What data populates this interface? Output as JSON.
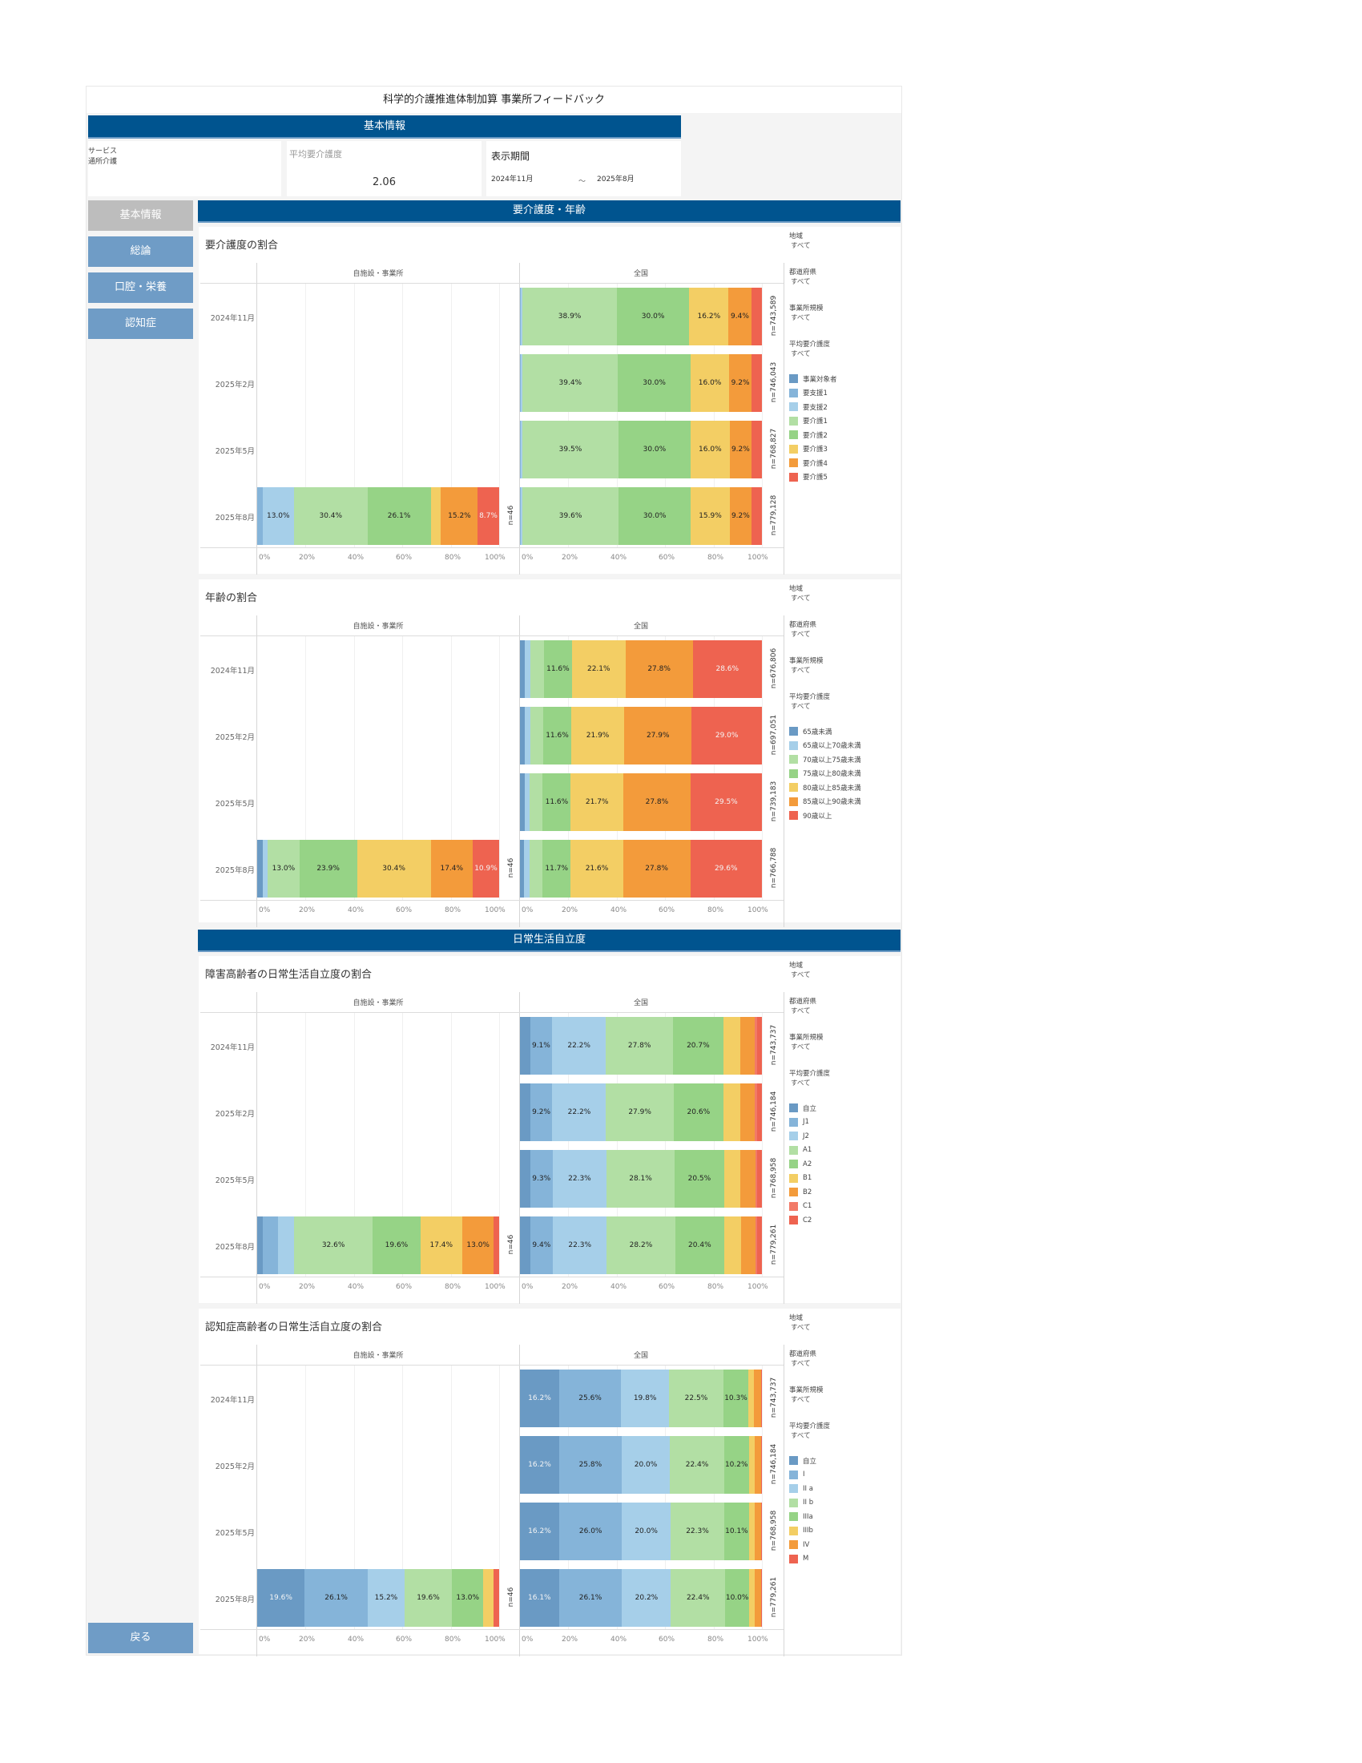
{
  "page": {
    "title": "科学的介護推進体制加算 事業所フィードバック"
  },
  "basic_info": {
    "banner": "基本情報",
    "service_label": "サービス",
    "service_value": "通所介護",
    "avg_care_label": "平均要介護度",
    "avg_care_value": "2.06",
    "period_label": "表示期間",
    "period_start": "2024年11月",
    "period_sep": "～",
    "period_end": "2025年8月"
  },
  "nav": {
    "items": [
      {
        "label": "基本情報",
        "active": false
      },
      {
        "label": "総論",
        "active": true
      },
      {
        "label": "口腔・栄養",
        "active": true
      },
      {
        "label": "認知症",
        "active": true
      }
    ],
    "back": "戻る"
  },
  "sections": {
    "care_age": "要介護度・年齢",
    "daily_life": "日常生活自立度"
  },
  "colors": {
    "banner": "#00548f",
    "palette": [
      "#6a9ac4",
      "#85b4d9",
      "#a6cfe9",
      "#b2dfa4",
      "#96d386",
      "#f3ce64",
      "#f39b3b",
      "#ee6350"
    ]
  },
  "common": {
    "facility_header": "自施設・事業所",
    "national_header": "全国",
    "rows": [
      "2024年11月",
      "2025年2月",
      "2025年5月",
      "2025年8月"
    ],
    "ticks": [
      "0%",
      "20%",
      "40%",
      "60%",
      "80%",
      "100%"
    ],
    "filters": [
      {
        "label": "地域",
        "value": "すべて"
      },
      {
        "label": "都道府県",
        "value": "すべて"
      },
      {
        "label": "事業所規模",
        "value": "すべて"
      },
      {
        "label": "平均要介護度",
        "value": "すべて"
      }
    ]
  },
  "chart_data": [
    {
      "type": "bar",
      "stacked": "100%",
      "orientation": "horizontal",
      "title": "要介護度の割合",
      "categories": [
        "2024年11月",
        "2025年2月",
        "2025年5月",
        "2025年8月"
      ],
      "legend": [
        "事業対象者",
        "要支援1",
        "要支援2",
        "要介護1",
        "要介護2",
        "要介護3",
        "要介護4",
        "要介護5"
      ],
      "color_index": [
        0,
        1,
        2,
        3,
        4,
        5,
        6,
        7
      ],
      "xlim": [
        0,
        100
      ],
      "facility": {
        "n": [
          "",
          "",
          "",
          "n=46"
        ],
        "values": [
          null,
          null,
          null,
          [
            0,
            2.2,
            13.0,
            30.4,
            26.1,
            4.3,
            15.2,
            8.7
          ]
        ],
        "labels": [
          null,
          null,
          null,
          [
            "",
            "",
            "13.0%",
            "30.4%",
            "26.1%",
            "",
            "15.2%",
            "8.7%"
          ]
        ]
      },
      "national": {
        "n": [
          "n=743,589",
          "n=746,043",
          "n=768,827",
          "n=779,128"
        ],
        "values": [
          [
            0,
            0.4,
            0.7,
            38.9,
            30.0,
            16.2,
            9.4,
            4.4
          ],
          [
            0,
            0.4,
            0.7,
            39.4,
            30.0,
            16.0,
            9.2,
            4.3
          ],
          [
            0,
            0.4,
            0.7,
            39.5,
            30.0,
            16.0,
            9.2,
            4.2
          ],
          [
            0,
            0.4,
            0.7,
            39.6,
            30.0,
            15.9,
            9.2,
            4.2
          ]
        ],
        "labels": [
          [
            "",
            "",
            "",
            "38.9%",
            "30.0%",
            "16.2%",
            "9.4%",
            ""
          ],
          [
            "",
            "",
            "",
            "39.4%",
            "30.0%",
            "16.0%",
            "9.2%",
            ""
          ],
          [
            "",
            "",
            "",
            "39.5%",
            "30.0%",
            "16.0%",
            "9.2%",
            ""
          ],
          [
            "",
            "",
            "",
            "39.6%",
            "30.0%",
            "15.9%",
            "9.2%",
            ""
          ]
        ]
      }
    },
    {
      "type": "bar",
      "stacked": "100%",
      "orientation": "horizontal",
      "title": "年齢の割合",
      "categories": [
        "2024年11月",
        "2025年2月",
        "2025年5月",
        "2025年8月"
      ],
      "legend": [
        "65歳未満",
        "65歳以上70歳未満",
        "70歳以上75歳未満",
        "75歳以上80歳未満",
        "80歳以上85歳未満",
        "85歳以上90歳未満",
        "90歳以上"
      ],
      "color_index": [
        0,
        2,
        3,
        4,
        5,
        6,
        7
      ],
      "xlim": [
        0,
        100
      ],
      "facility": {
        "n": [
          "",
          "",
          "",
          "n=46"
        ],
        "values": [
          null,
          null,
          null,
          [
            2.2,
            2.2,
            13.0,
            23.9,
            30.4,
            17.4,
            10.9
          ]
        ],
        "labels": [
          null,
          null,
          null,
          [
            "",
            "",
            "13.0%",
            "23.9%",
            "30.4%",
            "17.4%",
            "10.9%"
          ]
        ]
      },
      "national": {
        "n": [
          "n=676,806",
          "n=697,051",
          "n=739,183",
          "n=766,788"
        ],
        "values": [
          [
            2.0,
            2.3,
            5.6,
            11.6,
            22.1,
            27.8,
            28.6
          ],
          [
            2.0,
            2.3,
            5.3,
            11.6,
            21.9,
            27.9,
            29.0
          ],
          [
            1.9,
            2.2,
            5.3,
            11.6,
            21.7,
            27.8,
            29.5
          ],
          [
            1.8,
            2.2,
            5.3,
            11.7,
            21.6,
            27.8,
            29.6
          ]
        ],
        "labels": [
          [
            "",
            "",
            "",
            "11.6%",
            "22.1%",
            "27.8%",
            "28.6%"
          ],
          [
            "",
            "",
            "",
            "11.6%",
            "21.9%",
            "27.9%",
            "29.0%"
          ],
          [
            "",
            "",
            "",
            "11.6%",
            "21.7%",
            "27.8%",
            "29.5%"
          ],
          [
            "",
            "",
            "",
            "11.7%",
            "21.6%",
            "27.8%",
            "29.6%"
          ]
        ]
      }
    },
    {
      "type": "bar",
      "stacked": "100%",
      "orientation": "horizontal",
      "title": "障害高齢者の日常生活自立度の割合",
      "categories": [
        "2024年11月",
        "2025年2月",
        "2025年5月",
        "2025年8月"
      ],
      "legend": [
        "自立",
        "J1",
        "J2",
        "A1",
        "A2",
        "B1",
        "B2",
        "C1",
        "C2"
      ],
      "color_index": [
        0,
        1,
        2,
        3,
        4,
        5,
        6,
        8,
        7
      ],
      "xlim": [
        0,
        100
      ],
      "facility": {
        "n": [
          "",
          "",
          "",
          "n=46"
        ],
        "values": [
          null,
          null,
          null,
          [
            2.2,
            6.5,
            6.5,
            32.6,
            19.6,
            17.4,
            13.0,
            0,
            2.2
          ]
        ],
        "labels": [
          null,
          null,
          null,
          [
            "",
            "",
            "",
            "32.6%",
            "19.6%",
            "17.4%",
            "13.0%",
            "",
            ""
          ]
        ]
      },
      "national": {
        "n": [
          "n=743,737",
          "n=746,184",
          "n=768,958",
          "n=779,261"
        ],
        "values": [
          [
            4.2,
            9.1,
            22.2,
            27.8,
            20.7,
            7.0,
            6.2,
            0.8,
            2.0
          ],
          [
            4.2,
            9.2,
            22.2,
            27.9,
            20.6,
            6.9,
            6.2,
            0.8,
            2.0
          ],
          [
            4.2,
            9.3,
            22.3,
            28.1,
            20.5,
            6.8,
            6.0,
            0.8,
            2.0
          ],
          [
            4.2,
            9.4,
            22.3,
            28.2,
            20.4,
            6.8,
            6.0,
            0.7,
            2.0
          ]
        ],
        "labels": [
          [
            "",
            "9.1%",
            "22.2%",
            "27.8%",
            "20.7%",
            "",
            "",
            "",
            ""
          ],
          [
            "",
            "9.2%",
            "22.2%",
            "27.9%",
            "20.6%",
            "",
            "",
            "",
            ""
          ],
          [
            "",
            "9.3%",
            "22.3%",
            "28.1%",
            "20.5%",
            "",
            "",
            "",
            ""
          ],
          [
            "",
            "9.4%",
            "22.3%",
            "28.2%",
            "20.4%",
            "",
            "",
            "",
            ""
          ]
        ]
      }
    },
    {
      "type": "bar",
      "stacked": "100%",
      "orientation": "horizontal",
      "title": "認知症高齢者の日常生活自立度の割合",
      "categories": [
        "2024年11月",
        "2025年2月",
        "2025年5月",
        "2025年8月"
      ],
      "legend": [
        "自立",
        "I",
        "II a",
        "II b",
        "IIIa",
        "IIIb",
        "IV",
        "M"
      ],
      "color_index": [
        0,
        1,
        2,
        3,
        4,
        5,
        6,
        7
      ],
      "xlim": [
        0,
        100
      ],
      "facility": {
        "n": [
          "",
          "",
          "",
          "n=46"
        ],
        "values": [
          null,
          null,
          null,
          [
            19.6,
            26.1,
            15.2,
            19.6,
            13.0,
            4.3,
            0,
            2.2
          ]
        ],
        "labels": [
          null,
          null,
          null,
          [
            "19.6%",
            "26.1%",
            "15.2%",
            "19.6%",
            "13.0%",
            "",
            "",
            ""
          ]
        ]
      },
      "national": {
        "n": [
          "n=743,737",
          "n=746,184",
          "n=768,958",
          "n=779,261"
        ],
        "values": [
          [
            16.2,
            25.6,
            19.8,
            22.5,
            10.3,
            2.3,
            3.1,
            0.2
          ],
          [
            16.2,
            25.8,
            20.0,
            22.4,
            10.2,
            2.3,
            2.9,
            0.2
          ],
          [
            16.2,
            26.0,
            20.0,
            22.3,
            10.1,
            2.3,
            2.9,
            0.2
          ],
          [
            16.1,
            26.1,
            20.2,
            22.4,
            10.0,
            2.2,
            2.8,
            0.2
          ]
        ],
        "labels": [
          [
            "16.2%",
            "25.6%",
            "19.8%",
            "22.5%",
            "10.3%",
            "",
            "",
            ""
          ],
          [
            "16.2%",
            "25.8%",
            "20.0%",
            "22.4%",
            "10.2%",
            "",
            "",
            ""
          ],
          [
            "16.2%",
            "26.0%",
            "20.0%",
            "22.3%",
            "10.1%",
            "",
            "",
            ""
          ],
          [
            "16.1%",
            "26.1%",
            "20.2%",
            "22.4%",
            "10.0%",
            "",
            "",
            ""
          ]
        ]
      }
    }
  ]
}
